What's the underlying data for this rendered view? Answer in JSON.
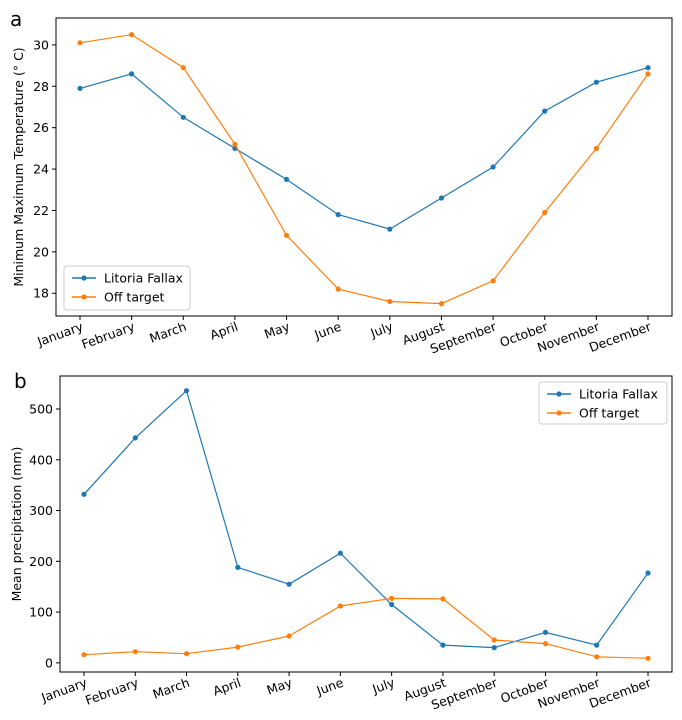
{
  "chart_data": [
    {
      "type": "line",
      "panel_label": "a",
      "title": "",
      "xlabel": "",
      "ylabel": "Minimum Maximum Temperature (° C)",
      "categories": [
        "January",
        "February",
        "March",
        "April",
        "May",
        "June",
        "July",
        "August",
        "September",
        "October",
        "November",
        "December"
      ],
      "ylim": [
        16.9,
        31.3
      ],
      "yticks": [
        18,
        20,
        22,
        24,
        26,
        28,
        30
      ],
      "grid": false,
      "legend_position": "lower-left",
      "series": [
        {
          "name": "Litoria Fallax",
          "color": "#1f77b4",
          "values": [
            27.9,
            28.6,
            26.5,
            25.0,
            23.5,
            21.8,
            21.1,
            22.6,
            24.1,
            26.8,
            28.2,
            28.9
          ]
        },
        {
          "name": "Off target",
          "color": "#ff7f0e",
          "values": [
            30.1,
            30.5,
            28.9,
            25.2,
            20.8,
            18.2,
            17.6,
            17.5,
            18.6,
            21.9,
            25.0,
            28.6
          ]
        }
      ]
    },
    {
      "type": "line",
      "panel_label": "b",
      "title": "",
      "xlabel": "",
      "ylabel": "Mean precipitation (mm)",
      "categories": [
        "January",
        "February",
        "March",
        "April",
        "May",
        "June",
        "July",
        "August",
        "September",
        "October",
        "November",
        "December"
      ],
      "ylim": [
        -18,
        565
      ],
      "yticks": [
        0,
        100,
        200,
        300,
        400,
        500
      ],
      "grid": false,
      "legend_position": "upper-right",
      "series": [
        {
          "name": "Litoria Fallax",
          "color": "#1f77b4",
          "values": [
            332,
            443,
            536,
            188,
            155,
            216,
            115,
            35,
            30,
            60,
            35,
            177
          ]
        },
        {
          "name": "Off target",
          "color": "#ff7f0e",
          "values": [
            16,
            22,
            18,
            31,
            53,
            112,
            127,
            126,
            45,
            38,
            12,
            9
          ]
        }
      ]
    }
  ]
}
